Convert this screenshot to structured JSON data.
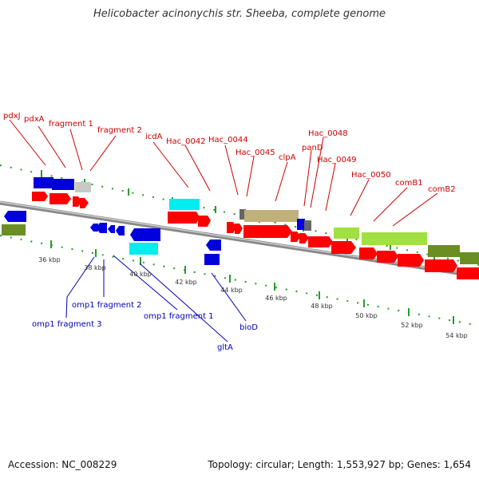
{
  "header": {
    "title": "Helicobacter acinonychis str. Sheeba, complete genome"
  },
  "footer": {
    "accession": "Accession: NC_008229",
    "summary": "Topology: circular; Length: 1,553,927 bp; Genes: 1,654"
  },
  "colors": {
    "backbone": "#999999",
    "cds": "#ff0000",
    "cds_reverse": "#0000dd",
    "rrna": "#00ffff",
    "pseudo": "#cccccc",
    "olive": "#6b8e23",
    "lime": "#a0e040",
    "tan": "#c8b878",
    "tick": "#2a9a2a",
    "forward_label": "#cc0000",
    "reverse_label": "#0000bb"
  },
  "scale_ticks": [
    "36 kbp",
    "38 kbp",
    "40 kbp",
    "42 kbp",
    "44 kbp",
    "46 kbp",
    "48 kbp",
    "50 kbp",
    "52 kbp",
    "54 kbp"
  ],
  "forward_labels": [
    "pdxJ",
    "pdxA",
    "fragment 1",
    "fragment 2",
    "icdA",
    "Hac_0042",
    "Hac_0044",
    "Hac_0045",
    "clpA",
    "panD",
    "Hac_0048",
    "Hac_0049",
    "Hac_0050",
    "comB1",
    "comB2"
  ],
  "reverse_labels": [
    "omp1 fragment 3",
    "omp1 fragment 2",
    "omp1 fragment 1",
    "gltA",
    "bioD"
  ]
}
